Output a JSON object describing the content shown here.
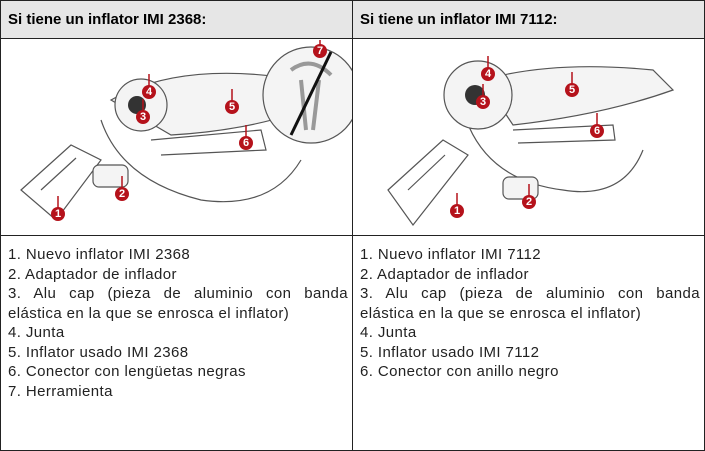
{
  "header": [
    "Si tiene un inflator IMI 2368:",
    "Si tiene un inflator IMI 7112:"
  ],
  "callouts": [
    [
      "1",
      "2",
      "3",
      "4",
      "5",
      "6",
      "7"
    ],
    [
      "1",
      "2",
      "3",
      "4",
      "5",
      "6"
    ]
  ],
  "lists": [
    [
      "1. Nuevo inflator IMI 2368",
      "2. Adaptador de inflador",
      "3. Alu cap (pieza de aluminio con banda elástica en la que se enrosca el inflator)",
      "4. Junta",
      "5. Inflator usado IMI 2368",
      "6. Conector con lengüetas negras",
      "7. Herramienta"
    ],
    [
      "1. Nuevo inflator IMI 7112",
      "2. Adaptador de inflador",
      "3. Alu cap (pieza de aluminio con banda elástica en la que se enrosca el inflator)",
      "4. Junta",
      "5. Inflator usado IMI 7112",
      "6. Conector con anillo negro"
    ]
  ]
}
